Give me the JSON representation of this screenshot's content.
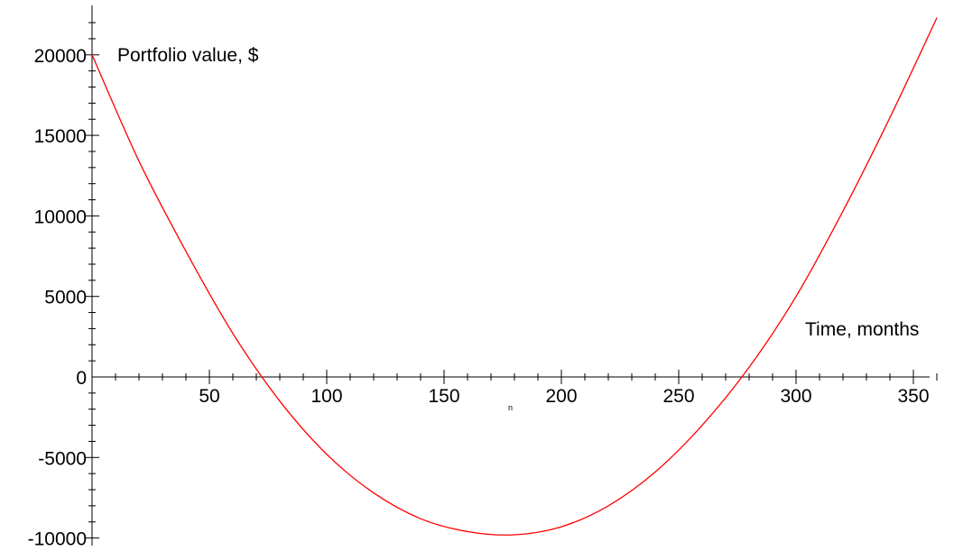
{
  "chart_data": {
    "type": "line",
    "title": "",
    "xlabel": "Time, months",
    "ylabel": "Portfolio value, $",
    "xlim": [
      0,
      360
    ],
    "ylim": [
      -10000,
      22000
    ],
    "x_ticks": [
      50,
      100,
      150,
      200,
      250,
      300,
      350
    ],
    "y_ticks": [
      -10000,
      -5000,
      0,
      5000,
      10000,
      15000,
      20000
    ],
    "x_tick_labels": [
      "50",
      "100",
      "150",
      "200",
      "250",
      "300",
      "350"
    ],
    "y_tick_labels": [
      "-10000",
      "-5000",
      "0",
      "5000",
      "10000",
      "15000",
      "20000"
    ],
    "extra_label": "n",
    "grid": false,
    "series": [
      {
        "color": "#ff0000",
        "x": [
          0,
          20,
          40,
          60,
          80,
          100,
          120,
          140,
          160,
          180,
          200,
          220,
          240,
          260,
          280,
          300,
          320,
          340,
          360
        ],
        "y": [
          20000,
          13400,
          7800,
          2700,
          -1500,
          -4800,
          -7200,
          -8800,
          -9600,
          -9800,
          -9300,
          -8000,
          -5900,
          -3000,
          600,
          5000,
          10300,
          16100,
          22300
        ]
      }
    ]
  }
}
